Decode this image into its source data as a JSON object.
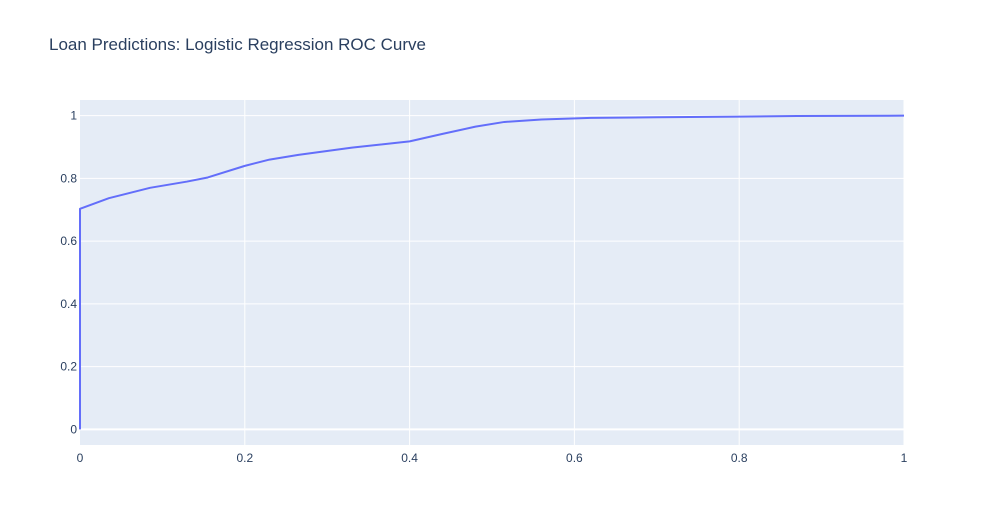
{
  "chart_data": {
    "type": "line",
    "title": "Loan Predictions: Logistic Regression ROC Curve",
    "xlabel": "",
    "ylabel": "",
    "xlim": [
      0,
      1
    ],
    "ylim": [
      -0.05,
      1.05
    ],
    "x_ticks": [
      0,
      0.2,
      0.4,
      0.6,
      0.8,
      1
    ],
    "x_tick_labels": [
      "0",
      "0.2",
      "0.4",
      "0.6",
      "0.8",
      "1"
    ],
    "y_ticks": [
      0,
      0.2,
      0.4,
      0.6,
      0.8,
      1
    ],
    "y_tick_labels": [
      "0",
      "0.2",
      "0.4",
      "0.6",
      "0.8",
      "1"
    ],
    "grid": true,
    "legend": "none",
    "colors": {
      "plot_bg": "#e5ecf6",
      "grid": "#ffffff",
      "line": "#636efa",
      "text": "#2a3f5f"
    },
    "series": [
      {
        "x": [
          0,
          0,
          0.035,
          0.085,
          0.13,
          0.155,
          0.2,
          0.23,
          0.265,
          0.33,
          0.4,
          0.44,
          0.48,
          0.515,
          0.56,
          0.62,
          0.7,
          0.8,
          0.87,
          1
        ],
        "y": [
          0,
          0.703,
          0.737,
          0.77,
          0.79,
          0.803,
          0.84,
          0.86,
          0.875,
          0.898,
          0.918,
          0.942,
          0.965,
          0.98,
          0.988,
          0.993,
          0.995,
          0.997,
          0.999,
          1
        ]
      }
    ]
  }
}
